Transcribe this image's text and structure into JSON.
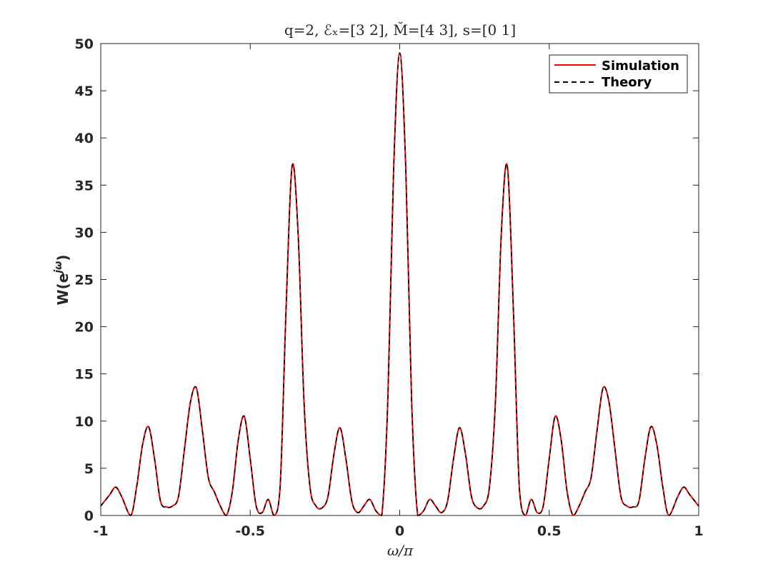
{
  "chart_data": {
    "type": "line",
    "title": "q=2, ℰₓ=[3 2], M̆=[4 3], s=[0 1]",
    "xlabel": "ω/π",
    "ylabel": "W(e^{jω})",
    "ylabel_main": "W(e",
    "ylabel_sup": "jω",
    "ylabel_close": ")",
    "xlim": [
      -1,
      1
    ],
    "ylim": [
      0,
      50
    ],
    "xticks": [
      -1,
      -0.5,
      0,
      0.5,
      1
    ],
    "xtick_labels": [
      "-1",
      "-0.5",
      "0",
      "0.5",
      "1"
    ],
    "yticks": [
      0,
      5,
      10,
      15,
      20,
      25,
      30,
      35,
      40,
      45,
      50
    ],
    "ytick_labels": [
      "0",
      "5",
      "10",
      "15",
      "20",
      "25",
      "30",
      "35",
      "40",
      "45",
      "50"
    ],
    "grid": false,
    "legend_position": "top-right",
    "series": [
      {
        "name": "Simulation",
        "color": "#ff0000",
        "style": "solid",
        "x": [
          -1.0,
          -0.97,
          -0.95,
          -0.93,
          -0.9,
          -0.88,
          -0.86,
          -0.84,
          -0.82,
          -0.8,
          -0.78,
          -0.76,
          -0.74,
          -0.72,
          -0.7,
          -0.68,
          -0.66,
          -0.64,
          -0.62,
          -0.6,
          -0.58,
          -0.56,
          -0.54,
          -0.52,
          -0.5,
          -0.48,
          -0.46,
          -0.44,
          -0.42,
          -0.4,
          -0.38,
          -0.36,
          -0.34,
          -0.32,
          -0.3,
          -0.28,
          -0.26,
          -0.24,
          -0.22,
          -0.2,
          -0.18,
          -0.16,
          -0.14,
          -0.12,
          -0.1,
          -0.08,
          -0.06,
          -0.04,
          -0.02,
          0.0,
          0.02,
          0.04,
          0.06,
          0.08,
          0.1,
          0.12,
          0.14,
          0.16,
          0.18,
          0.2,
          0.22,
          0.24,
          0.26,
          0.28,
          0.3,
          0.32,
          0.34,
          0.36,
          0.38,
          0.4,
          0.42,
          0.44,
          0.46,
          0.48,
          0.5,
          0.52,
          0.54,
          0.56,
          0.58,
          0.6,
          0.62,
          0.64,
          0.66,
          0.68,
          0.7,
          0.72,
          0.74,
          0.76,
          0.78,
          0.8,
          0.82,
          0.84,
          0.86,
          0.88,
          0.9,
          0.93,
          0.95,
          0.97,
          1.0
        ],
        "y": [
          1.0,
          2.2,
          3.0,
          2.0,
          0.0,
          3.0,
          7.5,
          9.4,
          6.0,
          1.5,
          0.9,
          1.0,
          2.0,
          7.0,
          12.0,
          13.5,
          9.0,
          4.0,
          2.5,
          1.0,
          0.0,
          2.5,
          8.0,
          10.5,
          6.0,
          1.0,
          0.3,
          1.7,
          0.0,
          3.0,
          22.0,
          37.0,
          30.0,
          12.0,
          3.0,
          1.0,
          0.8,
          2.0,
          6.5,
          9.3,
          6.0,
          1.5,
          0.3,
          1.0,
          1.7,
          0.5,
          0.0,
          12.0,
          37.0,
          49.0,
          37.0,
          12.0,
          0.0,
          0.5,
          1.7,
          1.0,
          0.3,
          1.5,
          6.0,
          9.3,
          6.5,
          2.0,
          0.8,
          1.0,
          3.0,
          12.0,
          30.0,
          37.0,
          22.0,
          3.0,
          0.0,
          1.7,
          0.3,
          1.0,
          6.0,
          10.5,
          8.0,
          2.5,
          0.0,
          1.0,
          2.5,
          4.0,
          9.0,
          13.5,
          12.0,
          7.0,
          2.0,
          1.0,
          0.9,
          1.5,
          6.0,
          9.4,
          7.5,
          3.0,
          0.0,
          2.0,
          3.0,
          2.2,
          1.0
        ]
      },
      {
        "name": "Theory",
        "color": "#000000",
        "style": "dashed",
        "x": [
          -1.0,
          -0.97,
          -0.95,
          -0.93,
          -0.9,
          -0.88,
          -0.86,
          -0.84,
          -0.82,
          -0.8,
          -0.78,
          -0.76,
          -0.74,
          -0.72,
          -0.7,
          -0.68,
          -0.66,
          -0.64,
          -0.62,
          -0.6,
          -0.58,
          -0.56,
          -0.54,
          -0.52,
          -0.5,
          -0.48,
          -0.46,
          -0.44,
          -0.42,
          -0.4,
          -0.38,
          -0.36,
          -0.34,
          -0.32,
          -0.3,
          -0.28,
          -0.26,
          -0.24,
          -0.22,
          -0.2,
          -0.18,
          -0.16,
          -0.14,
          -0.12,
          -0.1,
          -0.08,
          -0.06,
          -0.04,
          -0.02,
          0.0,
          0.02,
          0.04,
          0.06,
          0.08,
          0.1,
          0.12,
          0.14,
          0.16,
          0.18,
          0.2,
          0.22,
          0.24,
          0.26,
          0.28,
          0.3,
          0.32,
          0.34,
          0.36,
          0.38,
          0.4,
          0.42,
          0.44,
          0.46,
          0.48,
          0.5,
          0.52,
          0.54,
          0.56,
          0.58,
          0.6,
          0.62,
          0.64,
          0.66,
          0.68,
          0.7,
          0.72,
          0.74,
          0.76,
          0.78,
          0.8,
          0.82,
          0.84,
          0.86,
          0.88,
          0.9,
          0.93,
          0.95,
          0.97,
          1.0
        ],
        "y": [
          1.0,
          2.2,
          3.0,
          2.0,
          0.0,
          3.0,
          7.5,
          9.4,
          6.0,
          1.5,
          0.9,
          1.0,
          2.0,
          7.0,
          12.0,
          13.5,
          9.0,
          4.0,
          2.5,
          1.0,
          0.0,
          2.5,
          8.0,
          10.5,
          6.0,
          1.0,
          0.3,
          1.7,
          0.0,
          3.0,
          22.0,
          37.0,
          30.0,
          12.0,
          3.0,
          1.0,
          0.8,
          2.0,
          6.5,
          9.3,
          6.0,
          1.5,
          0.3,
          1.0,
          1.7,
          0.5,
          0.0,
          12.0,
          37.0,
          49.0,
          37.0,
          12.0,
          0.0,
          0.5,
          1.7,
          1.0,
          0.3,
          1.5,
          6.0,
          9.3,
          6.5,
          2.0,
          0.8,
          1.0,
          3.0,
          12.0,
          30.0,
          37.0,
          22.0,
          3.0,
          0.0,
          1.7,
          0.3,
          1.0,
          6.0,
          10.5,
          8.0,
          2.5,
          0.0,
          1.0,
          2.5,
          4.0,
          9.0,
          13.5,
          12.0,
          7.0,
          2.0,
          1.0,
          0.9,
          1.5,
          6.0,
          9.4,
          7.5,
          3.0,
          0.0,
          2.0,
          3.0,
          2.2,
          1.0
        ]
      }
    ]
  }
}
